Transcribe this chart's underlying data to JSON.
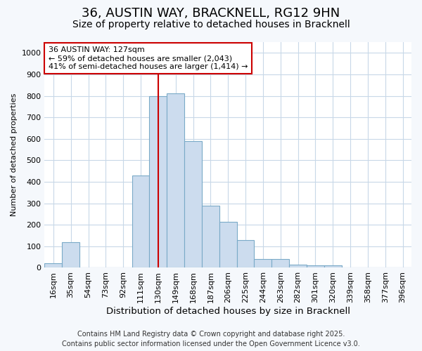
{
  "title_line1": "36, AUSTIN WAY, BRACKNELL, RG12 9HN",
  "title_line2": "Size of property relative to detached houses in Bracknell",
  "xlabel": "Distribution of detached houses by size in Bracknell",
  "ylabel": "Number of detached properties",
  "categories": [
    "16sqm",
    "35sqm",
    "54sqm",
    "73sqm",
    "92sqm",
    "111sqm",
    "130sqm",
    "149sqm",
    "168sqm",
    "187sqm",
    "206sqm",
    "225sqm",
    "244sqm",
    "263sqm",
    "282sqm",
    "301sqm",
    "320sqm",
    "339sqm",
    "358sqm",
    "377sqm",
    "396sqm"
  ],
  "values": [
    20,
    120,
    0,
    0,
    0,
    430,
    800,
    810,
    590,
    290,
    215,
    130,
    40,
    40,
    15,
    10,
    10,
    0,
    0,
    0,
    0
  ],
  "bar_color": "#ccdcee",
  "bar_edge_color": "#7aaac8",
  "vline_color": "#cc0000",
  "vline_position": 6.5,
  "annotation_text": "36 AUSTIN WAY: 127sqm\n← 59% of detached houses are smaller (2,043)\n41% of semi-detached houses are larger (1,414) →",
  "annotation_box_color": "#ffffff",
  "annotation_box_edge": "#cc0000",
  "ylim": [
    0,
    1050
  ],
  "yticks": [
    0,
    100,
    200,
    300,
    400,
    500,
    600,
    700,
    800,
    900,
    1000
  ],
  "footer_line1": "Contains HM Land Registry data © Crown copyright and database right 2025.",
  "footer_line2": "Contains public sector information licensed under the Open Government Licence v3.0.",
  "background_color": "#f5f8fc",
  "plot_background": "#ffffff",
  "grid_color": "#c8d8e8",
  "title_fontsize": 13,
  "subtitle_fontsize": 10,
  "xlabel_fontsize": 9.5,
  "ylabel_fontsize": 8,
  "tick_fontsize": 8,
  "footer_fontsize": 7
}
